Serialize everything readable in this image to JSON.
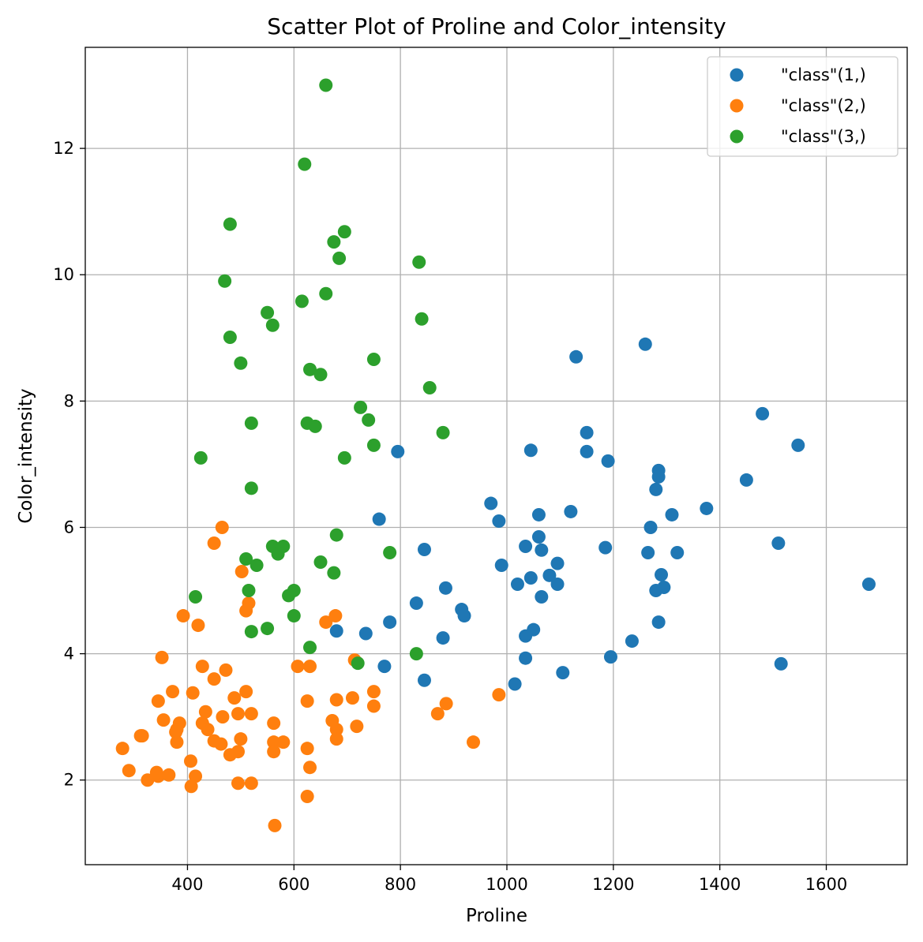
{
  "chart_data": {
    "type": "scatter",
    "title": "Scatter Plot of Proline and Color_intensity",
    "xlabel": "Proline",
    "ylabel": "Color_intensity",
    "xlim": [
      208,
      1752
    ],
    "ylim": [
      0.66,
      13.6
    ],
    "xticks": [
      400,
      600,
      800,
      1000,
      1200,
      1400,
      1600
    ],
    "yticks": [
      2,
      4,
      6,
      8,
      10,
      12
    ],
    "grid": true,
    "legend_position": "top-right",
    "series": [
      {
        "name": "\"class\"(1,)",
        "color": "#1f77b4",
        "points": [
          [
            1065,
            5.64
          ],
          [
            1050,
            4.38
          ],
          [
            1185,
            5.68
          ],
          [
            1480,
            7.8
          ],
          [
            735,
            4.32
          ],
          [
            1450,
            6.75
          ],
          [
            1290,
            5.25
          ],
          [
            1295,
            5.05
          ],
          [
            1045,
            5.2
          ],
          [
            1045,
            7.22
          ],
          [
            1510,
            5.75
          ],
          [
            1280,
            5.0
          ],
          [
            1320,
            5.6
          ],
          [
            1150,
            7.5
          ],
          [
            1547,
            7.3
          ],
          [
            1310,
            6.2
          ],
          [
            1280,
            6.6
          ],
          [
            1130,
            8.7
          ],
          [
            1680,
            5.1
          ],
          [
            845,
            5.65
          ],
          [
            780,
            4.5
          ],
          [
            770,
            3.8
          ],
          [
            1035,
            3.93
          ],
          [
            1015,
            3.52
          ],
          [
            845,
            3.58
          ],
          [
            830,
            4.8
          ],
          [
            1195,
            3.95
          ],
          [
            1285,
            4.5
          ],
          [
            915,
            4.7
          ],
          [
            1035,
            5.7
          ],
          [
            1285,
            6.9
          ],
          [
            1515,
            3.84
          ],
          [
            990,
            5.4
          ],
          [
            1235,
            4.2
          ],
          [
            1095,
            5.1
          ],
          [
            920,
            4.6
          ],
          [
            880,
            4.25
          ],
          [
            1105,
            3.7
          ],
          [
            1020,
            5.1
          ],
          [
            760,
            6.13
          ],
          [
            795,
            7.2
          ],
          [
            1035,
            4.28
          ],
          [
            1095,
            5.43
          ],
          [
            680,
            4.36
          ],
          [
            885,
            5.04
          ],
          [
            1080,
            5.24
          ],
          [
            1065,
            4.9
          ],
          [
            985,
            6.1
          ],
          [
            1060,
            6.2
          ],
          [
            1260,
            8.9
          ],
          [
            1150,
            7.2
          ],
          [
            1265,
            5.6
          ],
          [
            1190,
            7.05
          ],
          [
            1375,
            6.3
          ],
          [
            1060,
            5.85
          ],
          [
            1120,
            6.25
          ],
          [
            970,
            6.38
          ],
          [
            1270,
            6.0
          ],
          [
            1285,
            6.8
          ]
        ]
      },
      {
        "name": "\"class\"(2,)",
        "color": "#ff7f0e",
        "points": [
          [
            520,
            1.95
          ],
          [
            680,
            3.27
          ],
          [
            450,
            5.75
          ],
          [
            630,
            3.8
          ],
          [
            420,
            4.45
          ],
          [
            355,
            2.95
          ],
          [
            678,
            4.6
          ],
          [
            502,
            5.3
          ],
          [
            510,
            4.68
          ],
          [
            750,
            3.17
          ],
          [
            718,
            2.85
          ],
          [
            870,
            3.05
          ],
          [
            410,
            3.38
          ],
          [
            472,
            3.74
          ],
          [
            985,
            3.35
          ],
          [
            886,
            3.21
          ],
          [
            428,
            3.8
          ],
          [
            392,
            4.6
          ],
          [
            500,
            2.65
          ],
          [
            750,
            3.4
          ],
          [
            463,
            2.57
          ],
          [
            278,
            2.5
          ],
          [
            714,
            3.9
          ],
          [
            630,
            2.2
          ],
          [
            515,
            4.8
          ],
          [
            520,
            3.05
          ],
          [
            450,
            2.62
          ],
          [
            495,
            2.45
          ],
          [
            562,
            2.6
          ],
          [
            680,
            2.8
          ],
          [
            625,
            1.74
          ],
          [
            480,
            2.4
          ],
          [
            450,
            3.6
          ],
          [
            495,
            3.05
          ],
          [
            290,
            2.15
          ],
          [
            345,
            3.25
          ],
          [
            937,
            2.6
          ],
          [
            625,
            2.5
          ],
          [
            428,
            2.9
          ],
          [
            660,
            4.5
          ],
          [
            406,
            2.3
          ],
          [
            710,
            3.3
          ],
          [
            562,
            2.45
          ],
          [
            438,
            2.8
          ],
          [
            415,
            2.06
          ],
          [
            672,
            2.94
          ],
          [
            315,
            2.7
          ],
          [
            510,
            3.4
          ],
          [
            488,
            3.3
          ],
          [
            312,
            2.7
          ],
          [
            680,
            2.65
          ],
          [
            562,
            2.9
          ],
          [
            325,
            2.0
          ],
          [
            607,
            3.8
          ],
          [
            434,
            3.08
          ],
          [
            385,
            2.9
          ],
          [
            407,
            1.9
          ],
          [
            495,
            1.95
          ],
          [
            345,
            2.06
          ],
          [
            372,
            3.4
          ],
          [
            564,
            1.28
          ],
          [
            625,
            3.25
          ],
          [
            465,
            6.0
          ],
          [
            365,
            2.08
          ],
          [
            380,
            2.6
          ],
          [
            380,
            2.8
          ],
          [
            378,
            2.76
          ],
          [
            352,
            3.94
          ],
          [
            466,
            3.0
          ],
          [
            342,
            2.12
          ],
          [
            580,
            2.6
          ]
        ]
      },
      {
        "name": "\"class\"(3,)",
        "color": "#2ca02c",
        "points": [
          [
            630,
            4.1
          ],
          [
            530,
            5.4
          ],
          [
            560,
            5.7
          ],
          [
            600,
            5.0
          ],
          [
            650,
            5.45
          ],
          [
            695,
            7.1
          ],
          [
            720,
            3.85
          ],
          [
            515,
            5.0
          ],
          [
            580,
            5.7
          ],
          [
            590,
            4.92
          ],
          [
            600,
            4.6
          ],
          [
            780,
            5.6
          ],
          [
            520,
            4.35
          ],
          [
            550,
            4.4
          ],
          [
            855,
            8.21
          ],
          [
            830,
            4.0
          ],
          [
            415,
            4.9
          ],
          [
            625,
            7.65
          ],
          [
            650,
            8.42
          ],
          [
            550,
            9.4
          ],
          [
            500,
            8.6
          ],
          [
            480,
            10.8
          ],
          [
            425,
            7.1
          ],
          [
            675,
            10.52
          ],
          [
            640,
            7.6
          ],
          [
            725,
            7.9
          ],
          [
            480,
            9.01
          ],
          [
            880,
            7.5
          ],
          [
            660,
            13.0
          ],
          [
            620,
            11.75
          ],
          [
            520,
            7.65
          ],
          [
            680,
            5.88
          ],
          [
            570,
            5.58
          ],
          [
            675,
            5.28
          ],
          [
            615,
            9.58
          ],
          [
            520,
            6.62
          ],
          [
            695,
            10.68
          ],
          [
            685,
            10.26
          ],
          [
            750,
            8.66
          ],
          [
            510,
            5.5
          ],
          [
            470,
            9.899999
          ],
          [
            660,
            9.7
          ],
          [
            740,
            7.7
          ],
          [
            750,
            7.3
          ],
          [
            835,
            10.2
          ],
          [
            840,
            9.3
          ],
          [
            560,
            9.2
          ],
          [
            630,
            8.5
          ]
        ]
      }
    ]
  }
}
